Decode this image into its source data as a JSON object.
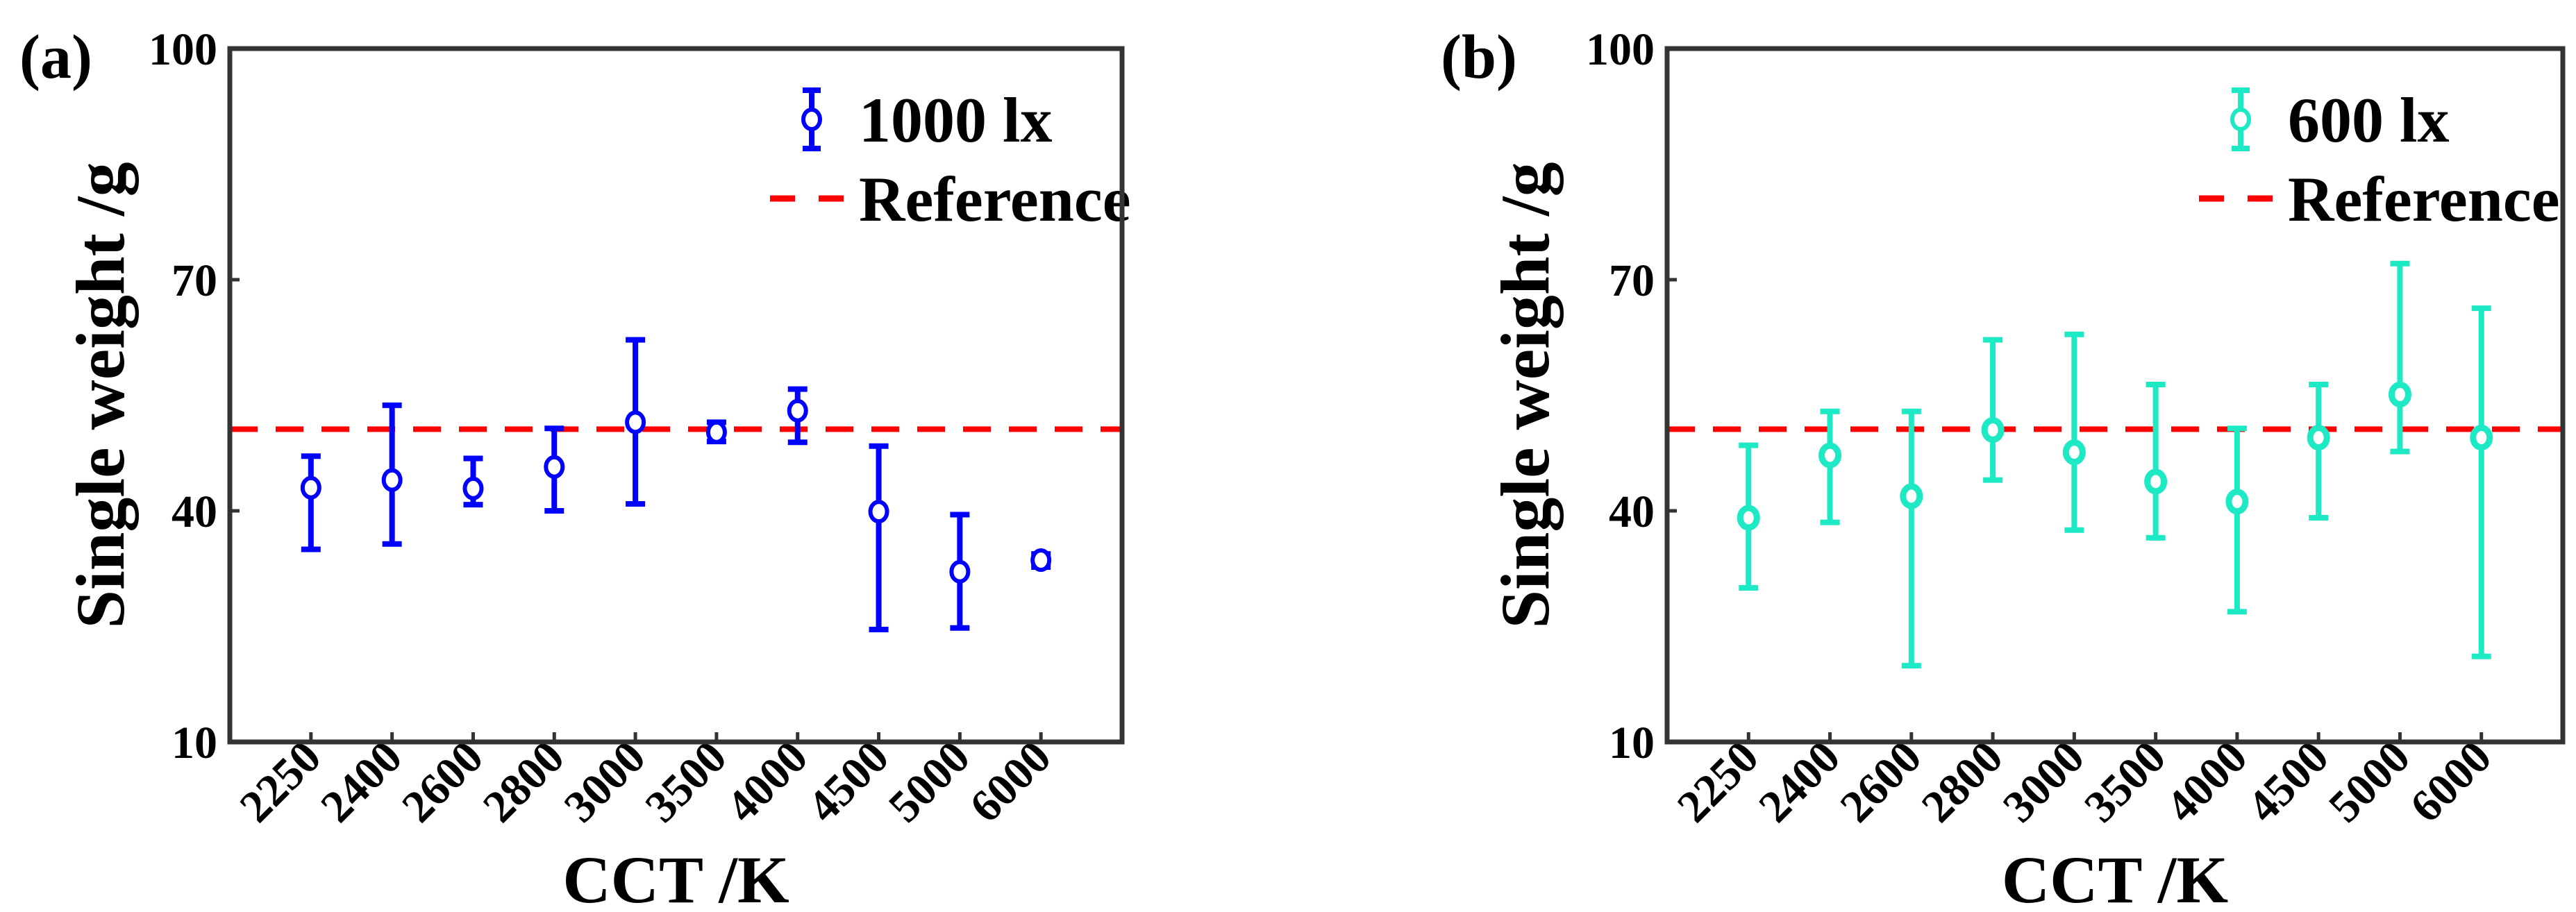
{
  "chart_data": [
    {
      "type": "scatter",
      "panel_label": "(a)",
      "xlabel": "CCT /K",
      "ylabel": "Single weight /g",
      "categories": [
        "2250",
        "2400",
        "2600",
        "2800",
        "3000",
        "3500",
        "4000",
        "4500",
        "5000",
        "6000"
      ],
      "ylim": [
        10,
        100
      ],
      "yticks": [
        "10",
        "40",
        "70",
        "100"
      ],
      "grid": false,
      "legend_position": "top-right",
      "series": [
        {
          "name": "1000 lx",
          "color": "#0000ff",
          "marker": "open-circle",
          "values": [
            43.0,
            44.0,
            42.9,
            45.7,
            51.5,
            50.2,
            53.0,
            39.9,
            32.1,
            33.6
          ],
          "upper": [
            47.1,
            53.7,
            46.8,
            50.7,
            62.2,
            51.5,
            55.8,
            48.4,
            39.5,
            34.4
          ],
          "lower": [
            35.0,
            35.7,
            40.8,
            40.0,
            40.9,
            49.0,
            48.9,
            24.6,
            24.8,
            32.7
          ]
        }
      ],
      "reference": {
        "name": "Reference",
        "value": 50.6,
        "color": "#ff0000"
      }
    },
    {
      "type": "scatter",
      "panel_label": "(b)",
      "xlabel": "CCT /K",
      "ylabel": "Single weight /g",
      "categories": [
        "2250",
        "2400",
        "2600",
        "2800",
        "3000",
        "3500",
        "4000",
        "4500",
        "5000",
        "6000"
      ],
      "ylim": [
        10,
        100
      ],
      "yticks": [
        "10",
        "40",
        "70",
        "100"
      ],
      "grid": false,
      "legend_position": "top-right",
      "series": [
        {
          "name": "600 lx",
          "color": "#1de9c4",
          "marker": "open-circle",
          "values": [
            39.1,
            47.2,
            41.9,
            50.5,
            47.6,
            43.8,
            41.2,
            49.5,
            55.1,
            49.5
          ],
          "upper": [
            48.5,
            52.9,
            52.9,
            62.2,
            62.9,
            56.4,
            50.7,
            56.4,
            72.1,
            66.3
          ],
          "lower": [
            30.0,
            38.5,
            19.9,
            44.0,
            37.5,
            36.5,
            26.9,
            39.1,
            47.7,
            21.1
          ]
        }
      ],
      "reference": {
        "name": "Reference",
        "value": 50.6,
        "color": "#ff0000"
      }
    }
  ]
}
